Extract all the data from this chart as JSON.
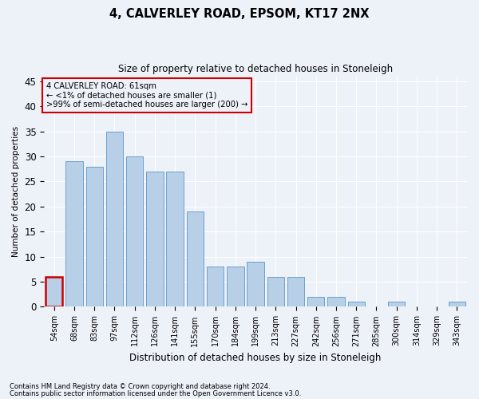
{
  "title": "4, CALVERLEY ROAD, EPSOM, KT17 2NX",
  "subtitle": "Size of property relative to detached houses in Stoneleigh",
  "xlabel": "Distribution of detached houses by size in Stoneleigh",
  "ylabel": "Number of detached properties",
  "bar_labels": [
    "54sqm",
    "68sqm",
    "83sqm",
    "97sqm",
    "112sqm",
    "126sqm",
    "141sqm",
    "155sqm",
    "170sqm",
    "184sqm",
    "199sqm",
    "213sqm",
    "227sqm",
    "242sqm",
    "256sqm",
    "271sqm",
    "285sqm",
    "300sqm",
    "314sqm",
    "329sqm",
    "343sqm"
  ],
  "bar_values": [
    6,
    29,
    28,
    35,
    30,
    27,
    27,
    19,
    8,
    8,
    9,
    6,
    6,
    2,
    2,
    1,
    0,
    1,
    0,
    0,
    1
  ],
  "bar_color": "#b8cfe8",
  "bar_edge_color": "#6ca0cc",
  "highlight_color": "#cc0000",
  "ylim": [
    0,
    46
  ],
  "yticks": [
    0,
    5,
    10,
    15,
    20,
    25,
    30,
    35,
    40,
    45
  ],
  "annotation_lines": [
    "4 CALVERLEY ROAD: 61sqm",
    "← <1% of detached houses are smaller (1)",
    ">99% of semi-detached houses are larger (200) →"
  ],
  "annotation_box_color": "#cc0000",
  "footnote1": "Contains HM Land Registry data © Crown copyright and database right 2024.",
  "footnote2": "Contains public sector information licensed under the Open Government Licence v3.0.",
  "background_color": "#edf1f8",
  "grid_color": "#ffffff"
}
